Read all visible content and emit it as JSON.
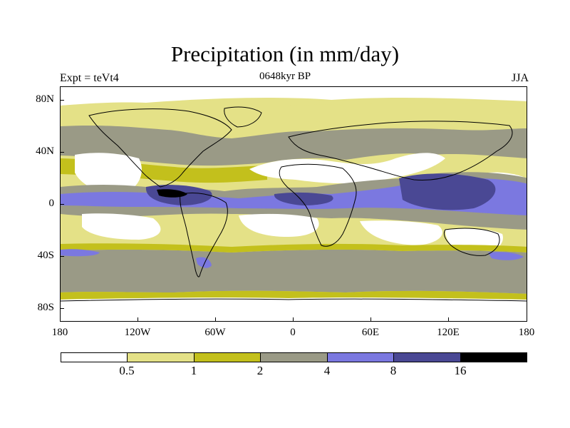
{
  "title": "Precipitation (in mm/day)",
  "subtitle": "0648kyr BP",
  "left_label": "Expt = teVt4",
  "right_label": "JJA",
  "map": {
    "projection": "cylindrical-equidistant",
    "lat_labels": [
      "80N",
      "40N",
      "0",
      "40S",
      "80S"
    ],
    "lon_labels": [
      "180",
      "120W",
      "60W",
      "0",
      "60E",
      "120E",
      "180"
    ],
    "variable": "precipitation",
    "season": "JJA"
  },
  "colorbar": {
    "labels": [
      "0.5",
      "1",
      "2",
      "4",
      "8",
      "16"
    ],
    "colors": [
      "#ffffff",
      "#e4e187",
      "#c3c01c",
      "#9a9a86",
      "#7b78e0",
      "#4a4894",
      "#000000"
    ]
  },
  "colors": {
    "ocean_dry": "#ffffff",
    "low": "#e4e187",
    "mid_low": "#c3c01c",
    "mid": "#9a9a86",
    "high": "#7b78e0",
    "very_high": "#4a4894",
    "extreme": "#000000"
  }
}
